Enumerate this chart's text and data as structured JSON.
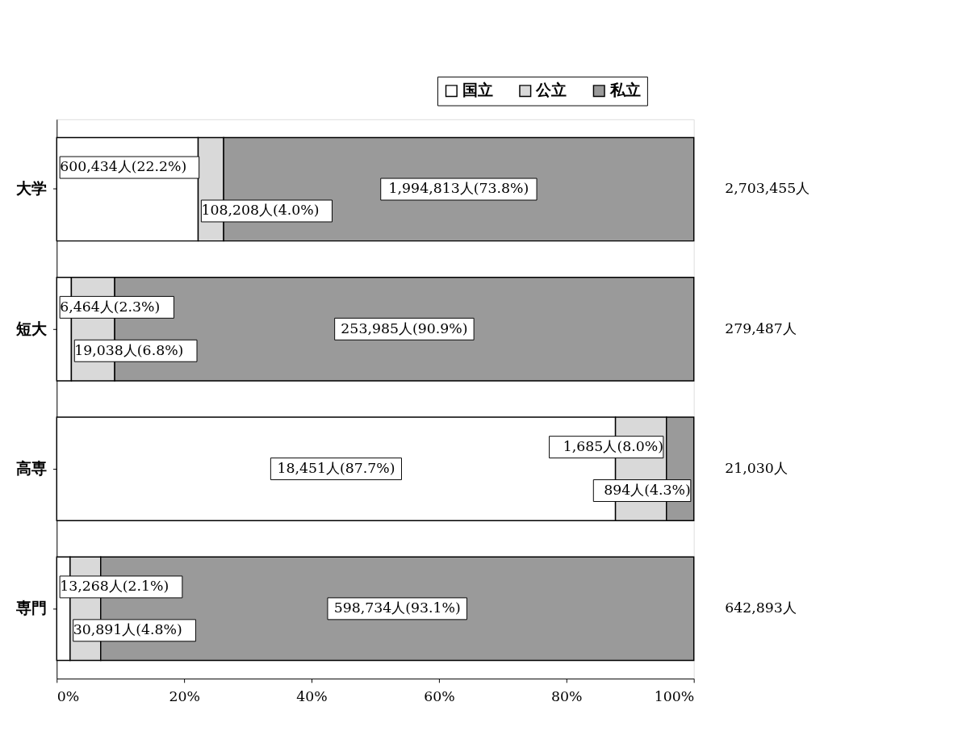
{
  "chart_data": {
    "type": "bar",
    "orientation": "horizontal",
    "stacked": true,
    "categories": [
      "大学",
      "短大",
      "高専",
      "専門"
    ],
    "series": [
      {
        "name": "国立",
        "color": "#ffffff",
        "values": [
          22.2,
          2.3,
          87.7,
          2.1
        ],
        "value_labels": [
          "600,434人(22.2%)",
          "6,464人(2.3%)",
          "18,451人(87.7%)",
          "13,268人(2.1%)"
        ]
      },
      {
        "name": "公立",
        "color": "#d9d9d9",
        "values": [
          4.0,
          6.8,
          8.0,
          4.8
        ],
        "value_labels": [
          "108,208人(4.0%)",
          "19,038人(6.8%)",
          "1,685人(8.0%)",
          "30,891人(4.8%)"
        ]
      },
      {
        "name": "私立",
        "color": "#9a9a9a",
        "values": [
          73.8,
          90.9,
          4.3,
          93.1
        ],
        "value_labels": [
          "1,994,813人(73.8%)",
          "253,985人(90.9%)",
          "894人(4.3%)",
          "598,734人(93.1%)"
        ]
      }
    ],
    "annotations": [
      "2,703,455人",
      "279,487人",
      "21,030人",
      "642,893人"
    ],
    "xlim": [
      0,
      100
    ],
    "xticks": [
      {
        "value": 0,
        "label": "0%"
      },
      {
        "value": 20,
        "label": "20%"
      },
      {
        "value": 40,
        "label": "40%"
      },
      {
        "value": 60,
        "label": "60%"
      },
      {
        "value": 80,
        "label": "80%"
      },
      {
        "value": 100,
        "label": "100%"
      }
    ],
    "grid": false,
    "legend": "top right"
  }
}
